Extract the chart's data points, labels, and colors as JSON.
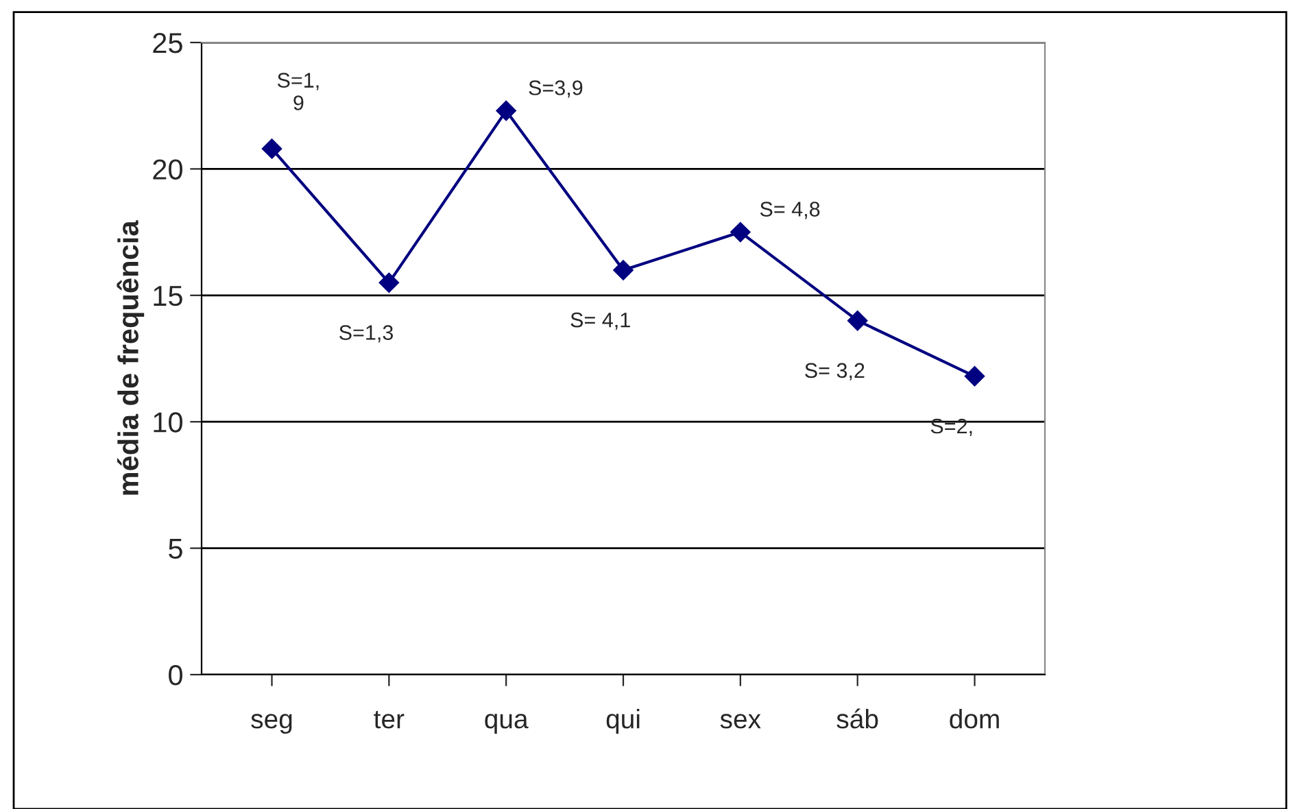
{
  "chart_data": {
    "type": "line",
    "ylabel": "média de frequência",
    "categories": [
      "seg",
      "ter",
      "qua",
      "qui",
      "sex",
      "sáb",
      "dom"
    ],
    "series": [
      {
        "color": "#000080",
        "values": [
          20.8,
          15.5,
          22.3,
          16.0,
          17.5,
          14.0,
          11.8
        ]
      }
    ],
    "ylim": [
      0,
      25
    ],
    "yticks": [
      0,
      5,
      10,
      15,
      20,
      25
    ],
    "grid": "y",
    "marker": "diamond",
    "line_style": "solid",
    "legend": false,
    "annotations": [
      {
        "text": "S=1,\n9",
        "x": "seg",
        "y": 20.8
      },
      {
        "text": "S=1,3",
        "x": "ter",
        "y": 15.5
      },
      {
        "text": "S=3,9",
        "x": "qua",
        "y": 22.3
      },
      {
        "text": "S= 4,1",
        "x": "qui",
        "y": 16.0
      },
      {
        "text": "S= 4,8",
        "x": "sex",
        "y": 17.5
      },
      {
        "text": "S= 3,2",
        "x": "sáb",
        "y": 14.0
      },
      {
        "text": "S=2,",
        "x": "dom",
        "y": 11.8
      }
    ]
  }
}
